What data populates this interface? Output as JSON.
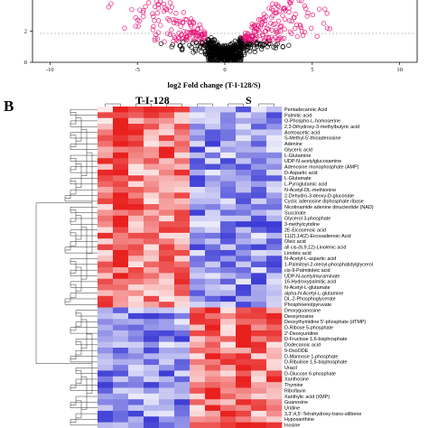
{
  "chart_data": [
    {
      "type": "scatter",
      "panel": "",
      "title": "",
      "xlabel": "log2 Fold change (T-I-128/S)",
      "ylabel": "",
      "x_ticks": [
        "-10",
        "-5",
        "0",
        "5",
        "10"
      ],
      "y_ticks": [
        "0",
        "2"
      ],
      "xlim": [
        -11,
        11
      ],
      "ylim": [
        0,
        4.6
      ],
      "threshold_y": 1.3,
      "threshold_x": [
        -1,
        1
      ],
      "colors": {
        "significant": "#e8197a",
        "not_significant": "#000000",
        "threshold_line": "#888888"
      }
    },
    {
      "type": "heatmap",
      "panel": "B",
      "groups": [
        {
          "label": "T-I-128",
          "columns": 6
        },
        {
          "label": "S",
          "columns": 6
        }
      ],
      "colors": {
        "high": "#e8201e",
        "mid": "#ffffff",
        "low": "#3b3bd6"
      },
      "rows": [
        "Pentadecanoic Acid",
        "Palmitic acid",
        "O-Phospho-L-homoserine",
        "2,3-Dihydroxy-3-methylbutyric acid",
        "Acetoacetic acid",
        "S-Methyl-5'-thioadenosine",
        "Adenine",
        "Glyceric acid",
        "L-Glutamine",
        "UDP-N-acetylglucosamine",
        "Adenosine monophosphate (AMP)",
        "D-Aspartic acid",
        "L-Glutamate",
        "L-Pyroglutamic acid",
        "N-Acetyl-DL-methionine",
        "2-Dehydro-3-deoxy-D-gluconate",
        "Cyclic adenosine diphosphate ribose",
        "Nicotinamide adenine dinucleotide (NAD)",
        "Succinate",
        "Glycerol 3-phosphate",
        "3-methylcytidine",
        "2E-Eicosenoic acid",
        "11(Z),14(Z)-Eicosadienoic Acid",
        "Oleic acid",
        "all cis-(6,9,12)-Linolenic acid",
        "Linoleic acid",
        "N-Acetyl-L-aspartic acid",
        "1-Palmitoyl-2-oleoyl-phosphatidylglycerol",
        "cis-9-Palmitoleic acid",
        "UDP-N-acetylmuraminate",
        "16-Hydroxypalmitic acid",
        "N-Acetyl-L-glutamate",
        "alpha-N-Acetyl-L-glutamine",
        "DL-2-Phosphoglycerate",
        "Phosphoenolpyruvate",
        "Deoxyguanosine",
        "Deoxyinosine",
        "Deoxythymidine 5'-phosphate (dTMP)",
        "D-Ribose 5-phosphate",
        "2'-Deoxyuridine",
        "D-Fructose 1,6-bisphosphate",
        "Dodecanoic acid",
        "9-OxoODE",
        "D-Mannose 1-phosphate",
        "D-Ribulose 1,5-bisphosphate",
        "Uracil",
        "D-Glucose 6-phosphate",
        "Xanthosine",
        "Thymine",
        "Riboflavin",
        "Xanthylic acid (XMP)",
        "Guanosine",
        "Uridine",
        "3,3',4,5'-Tetrahydroxy-trans-stilbene",
        "Hypoxanthine",
        "Inosine"
      ]
    }
  ]
}
